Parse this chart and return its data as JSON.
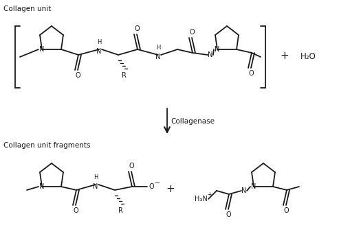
{
  "title_top": "Collagen unit",
  "title_bottom": "Collagen unit fragments",
  "enzyme_label": "Collagenase",
  "plus_sign": "+",
  "water": "H₂O",
  "background": "#ffffff",
  "text_color": "#1a1a1a",
  "line_color": "#1a1a1a",
  "fig_width": 4.93,
  "fig_height": 3.6,
  "dpi": 100
}
